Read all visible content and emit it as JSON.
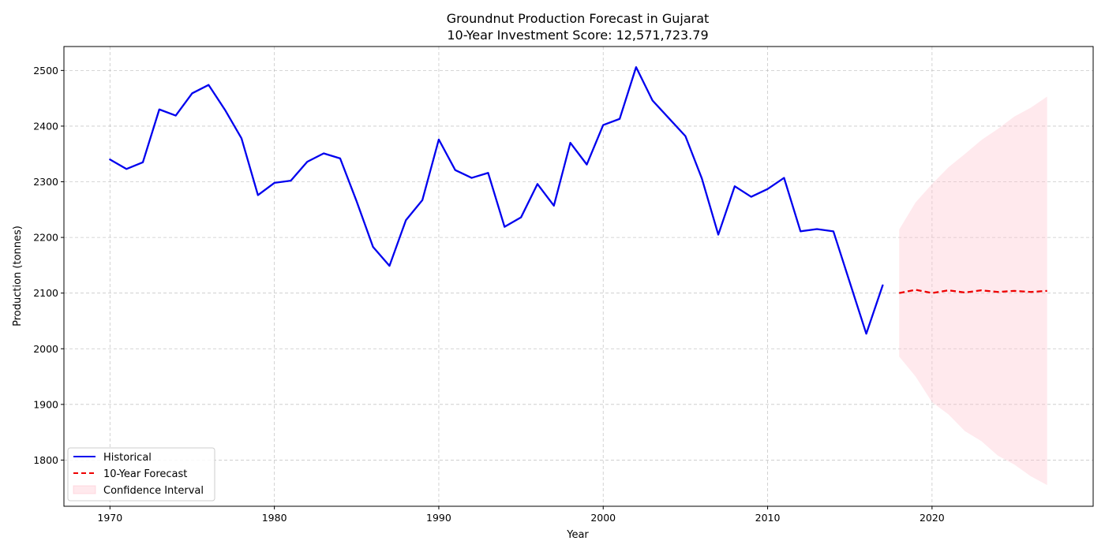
{
  "chart_data": {
    "type": "line",
    "title": "Groundnut Production Forecast in Gujarat",
    "subtitle": "10-Year Investment Score: 12,571,723.79",
    "xlabel": "Year",
    "ylabel": "Production (tonnes)",
    "xlim": [
      1967.2,
      2029.8
    ],
    "ylim": [
      1717,
      2543
    ],
    "x_ticks": [
      1970,
      1980,
      1990,
      2000,
      2010,
      2020
    ],
    "y_ticks": [
      1800,
      1900,
      2000,
      2100,
      2200,
      2300,
      2400,
      2500
    ],
    "grid": true,
    "legend_position": "lower-left",
    "series": [
      {
        "name": "Historical",
        "color": "#0000ee",
        "style": "solid",
        "x": [
          1970,
          1971,
          1972,
          1973,
          1974,
          1975,
          1976,
          1977,
          1978,
          1979,
          1980,
          1981,
          1982,
          1983,
          1984,
          1985,
          1986,
          1987,
          1988,
          1989,
          1990,
          1991,
          1992,
          1993,
          1994,
          1995,
          1996,
          1997,
          1998,
          1999,
          2000,
          2001,
          2002,
          2003,
          2004,
          2005,
          2006,
          2007,
          2008,
          2009,
          2010,
          2011,
          2012,
          2013,
          2014,
          2015,
          2016,
          2017
        ],
        "y": [
          2340,
          2323,
          2335,
          2430,
          2419,
          2459,
          2474,
          2429,
          2378,
          2276,
          2298,
          2302,
          2336,
          2351,
          2342,
          2265,
          2183,
          2149,
          2231,
          2267,
          2376,
          2321,
          2307,
          2316,
          2219,
          2236,
          2296,
          2257,
          2370,
          2331,
          2402,
          2413,
          2506,
          2446,
          2414,
          2382,
          2306,
          2205,
          2292,
          2273,
          2287,
          2307,
          2211,
          2215,
          2211,
          2119,
          2027,
          2114
        ]
      },
      {
        "name": "10-Year Forecast",
        "color": "#ee0000",
        "style": "dashed",
        "x": [
          2018,
          2019,
          2020,
          2021,
          2022,
          2023,
          2024,
          2025,
          2026,
          2027
        ],
        "y": [
          2100,
          2106,
          2100,
          2105,
          2101,
          2105,
          2102,
          2104,
          2102,
          2104
        ]
      }
    ],
    "confidence_interval": {
      "name": "Confidence Interval",
      "color": "#ffc0cb",
      "x": [
        2018,
        2019,
        2020,
        2021,
        2022,
        2023,
        2024,
        2025,
        2026,
        2027
      ],
      "upper": [
        2214,
        2263,
        2296,
        2326,
        2350,
        2375,
        2395,
        2417,
        2433,
        2453
      ],
      "lower": [
        1986,
        1950,
        1904,
        1882,
        1852,
        1834,
        1808,
        1792,
        1771,
        1755
      ]
    }
  }
}
